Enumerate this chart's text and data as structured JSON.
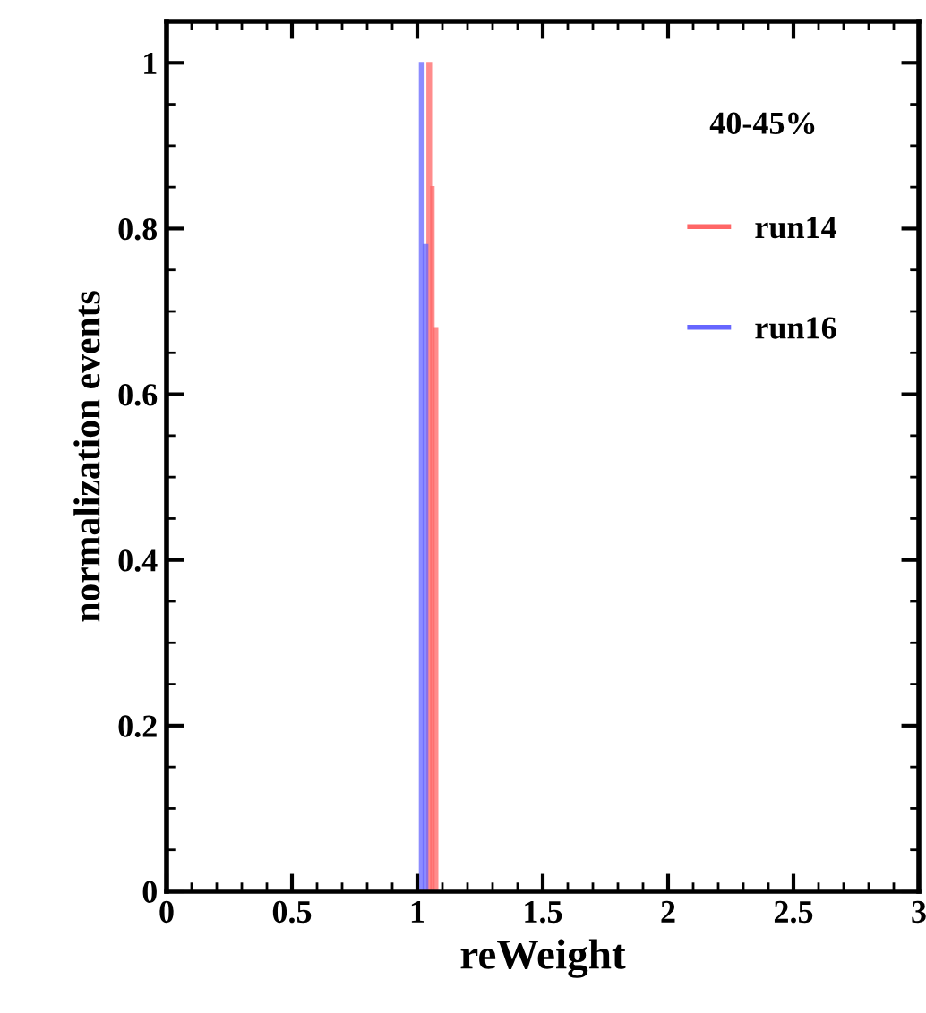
{
  "chart_data": {
    "type": "histogram",
    "xlabel": "reWeight",
    "ylabel": "normalization events",
    "legend_title": "40-45%",
    "bins": [
      0,
      1.01,
      1.025,
      1.04,
      1.055,
      1.065,
      1.08,
      3
    ],
    "series": [
      {
        "name": "run14",
        "color": "#ff6666",
        "values": [
          0,
          0,
          0,
          1,
          0.85,
          0.68,
          0
        ]
      },
      {
        "name": "run16",
        "color": "#6666ff",
        "values": [
          0,
          1,
          0.78,
          0,
          0,
          0,
          0
        ]
      }
    ],
    "xlim": [
      0,
      3
    ],
    "ylim": [
      0,
      1.05
    ],
    "xticks": [
      0,
      0.5,
      1,
      1.5,
      2,
      2.5,
      3
    ],
    "yticks": [
      0,
      0.2,
      0.4,
      0.6,
      0.8,
      1
    ],
    "grid": false,
    "legend": "top right"
  }
}
